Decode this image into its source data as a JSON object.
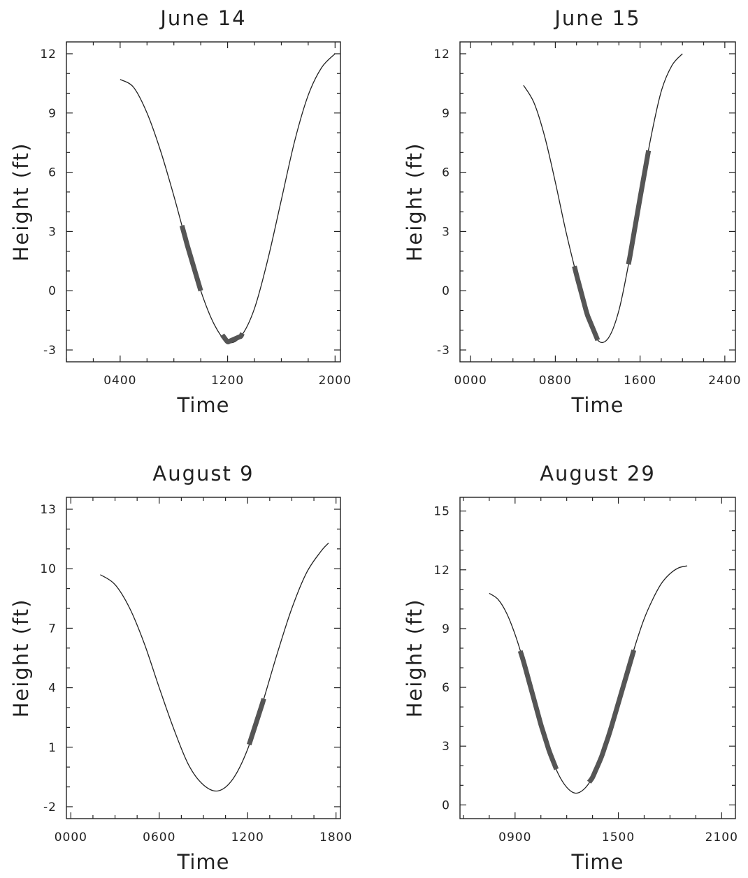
{
  "chart_data": [
    {
      "type": "line",
      "title": "June 14",
      "xlabel": "Time",
      "ylabel": "Height (ft)",
      "xticks": [
        "0400",
        "1200",
        "2000"
      ],
      "xtick_values": [
        4,
        12,
        20
      ],
      "xlim": [
        0,
        20.4
      ],
      "yticks": [
        -3,
        0,
        3,
        6,
        9,
        12
      ],
      "ylim": [
        -3.6,
        12.6
      ],
      "series": [
        {
          "x": [
            4,
            5,
            6,
            7,
            8,
            9,
            10,
            11,
            12,
            13,
            14,
            15,
            16,
            17,
            18,
            19,
            20
          ],
          "y": [
            10.7,
            10.3,
            9.0,
            7.1,
            4.8,
            2.3,
            0.0,
            -1.7,
            -2.6,
            -2.3,
            -0.9,
            1.6,
            4.6,
            7.6,
            9.9,
            11.3,
            12.0
          ]
        }
      ],
      "highlights": [
        [
          8.6,
          10.0
        ],
        [
          11.6,
          13.1
        ]
      ]
    },
    {
      "type": "line",
      "title": "June 15",
      "xlabel": "Time",
      "ylabel": "Height (ft)",
      "xticks": [
        "0000",
        "0800",
        "1600",
        "2400"
      ],
      "xtick_values": [
        0,
        8,
        16,
        24
      ],
      "xlim": [
        -1,
        25
      ],
      "yticks": [
        -3,
        0,
        3,
        6,
        9,
        12
      ],
      "ylim": [
        -3.6,
        12.6
      ],
      "series": [
        {
          "x": [
            5,
            6,
            7,
            8,
            9,
            10,
            11,
            12,
            13,
            14,
            15,
            16,
            17,
            18,
            19,
            20
          ],
          "y": [
            10.4,
            9.5,
            7.8,
            5.5,
            3.0,
            0.8,
            -1.2,
            -2.5,
            -2.4,
            -1.0,
            1.6,
            4.7,
            7.7,
            10.1,
            11.4,
            12.0
          ]
        }
      ],
      "highlights": [
        [
          9.8,
          12.0
        ],
        [
          14.9,
          16.8
        ]
      ]
    },
    {
      "type": "line",
      "title": "August 9",
      "xlabel": "Time",
      "ylabel": "Height (ft)",
      "xticks": [
        "0000",
        "0600",
        "1200",
        "1800"
      ],
      "xtick_values": [
        0,
        6,
        12,
        18
      ],
      "xlim": [
        -0.3,
        18.3
      ],
      "yticks": [
        -2,
        1,
        4,
        7,
        10,
        13
      ],
      "ylim": [
        -2.6,
        13.6
      ],
      "series": [
        {
          "x": [
            2,
            3,
            4,
            5,
            6,
            7,
            8,
            9,
            10,
            11,
            12,
            13,
            14,
            15,
            16,
            17,
            17.5
          ],
          "y": [
            9.7,
            9.2,
            8.0,
            6.2,
            4.0,
            1.9,
            0.1,
            -0.9,
            -1.2,
            -0.6,
            0.9,
            3.2,
            5.7,
            8.0,
            9.8,
            10.9,
            11.3
          ]
        }
      ],
      "highlights": [
        [
          12.1,
          13.1
        ]
      ]
    },
    {
      "type": "line",
      "title": "August 29",
      "xlabel": "Time",
      "ylabel": "Height (ft)",
      "xticks": [
        "0900",
        "1500",
        "2100"
      ],
      "xtick_values": [
        9,
        15,
        21
      ],
      "xlim": [
        5.8,
        21.8
      ],
      "yticks": [
        0,
        3,
        6,
        9,
        12,
        15
      ],
      "ylim": [
        -0.7,
        15.7
      ],
      "series": [
        {
          "x": [
            7.5,
            8,
            8.5,
            9,
            9.5,
            10,
            10.5,
            11,
            11.5,
            12,
            12.5,
            13,
            13.5,
            14,
            14.5,
            15,
            15.5,
            16,
            16.5,
            17,
            17.5,
            18,
            18.5,
            19
          ],
          "y": [
            10.8,
            10.5,
            9.8,
            8.7,
            7.3,
            5.7,
            4.1,
            2.7,
            1.6,
            0.9,
            0.6,
            0.8,
            1.4,
            2.4,
            3.7,
            5.2,
            6.7,
            8.2,
            9.5,
            10.5,
            11.3,
            11.8,
            12.1,
            12.2
          ]
        }
      ],
      "highlights": [
        [
          9.3,
          11.4
        ],
        [
          13.3,
          15.9
        ]
      ]
    }
  ]
}
